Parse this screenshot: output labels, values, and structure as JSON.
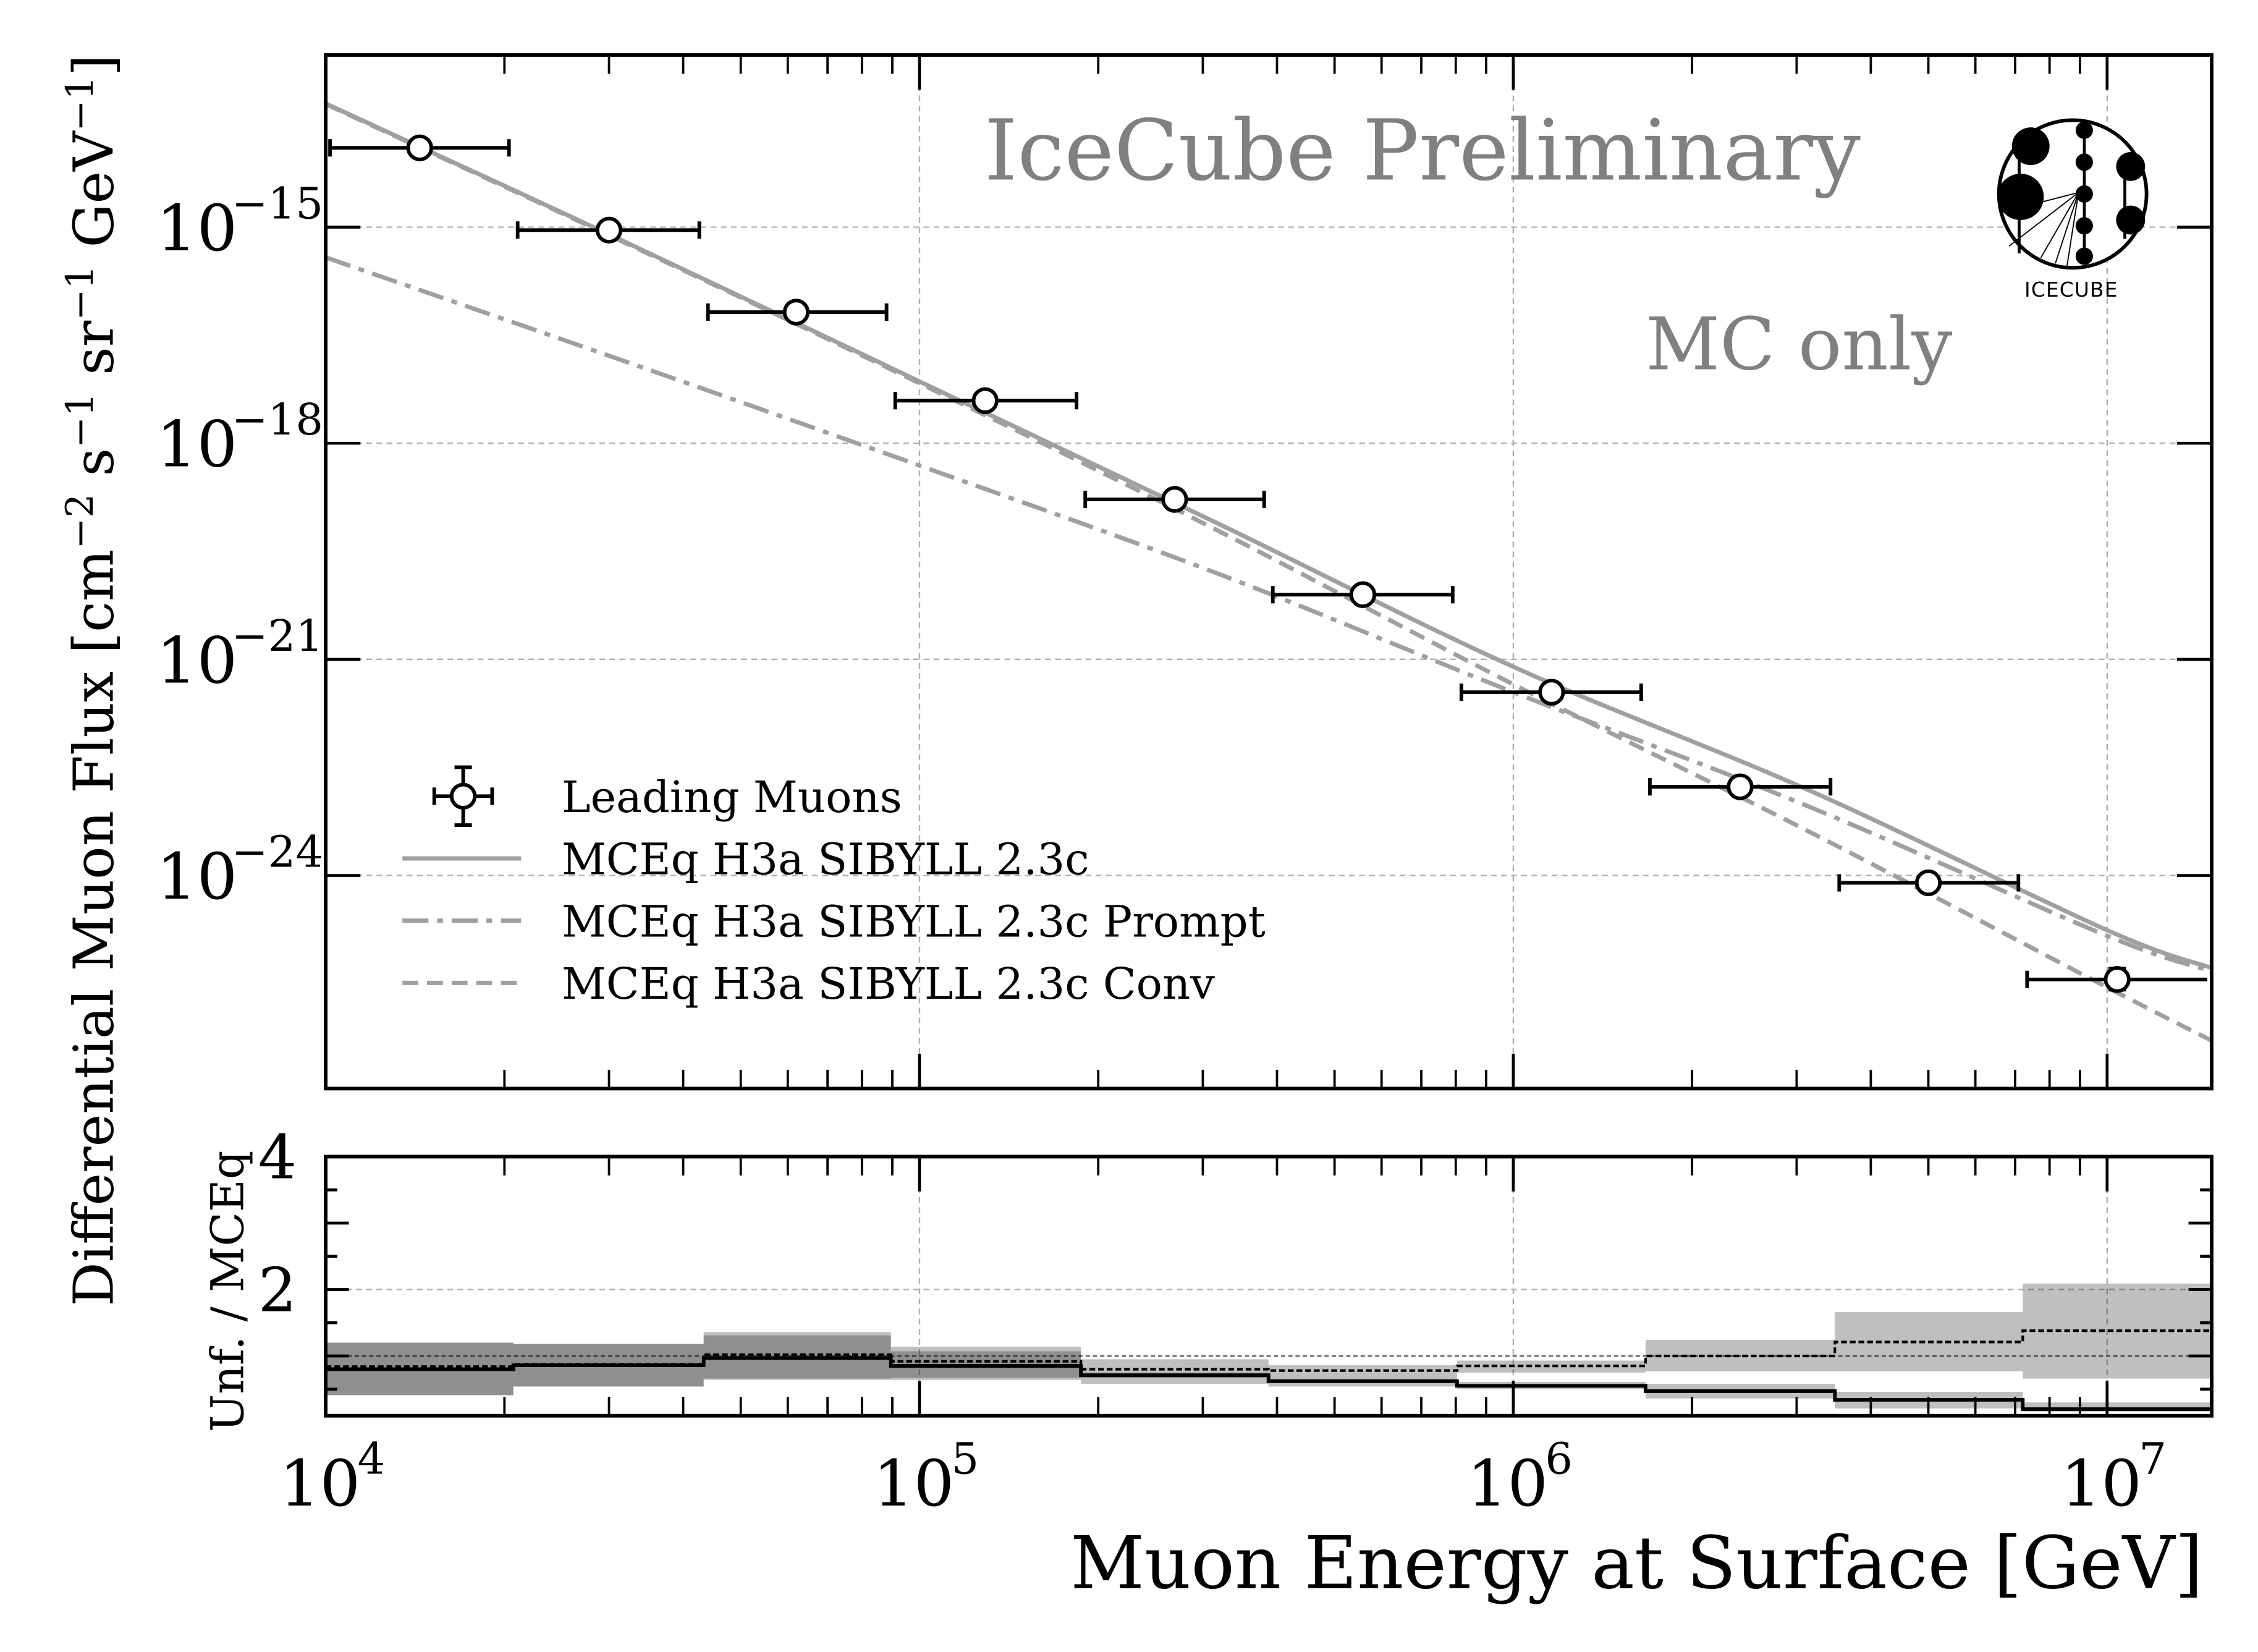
{
  "chart_data": [
    {
      "type": "scatter",
      "annotations": [
        "IceCube Preliminary",
        "MC only"
      ],
      "logo_text": "IceCube",
      "xlabel": "",
      "ylabel": "Differential Muon Flux [cm^-2 s^-1 sr^-1 GeV^-1]",
      "ylabel_parts": {
        "pre": "Differential Muon Flux [cm",
        "e1": "−2",
        "s": " s",
        "e2": "−1",
        "sr": " sr",
        "e3": "−1",
        "gev": " GeV",
        "e4": "−1",
        "post": "]"
      },
      "xscale": "log",
      "yscale": "log",
      "xlim": [
        10000.0,
        15000000.0
      ],
      "ylim": [
        1.1e-27,
        2.45e-13
      ],
      "grid": true,
      "legend_position": "lower-left",
      "yticks": [
        {
          "value": 1e-15,
          "base": "10",
          "exp": "−15"
        },
        {
          "value": 1e-18,
          "base": "10",
          "exp": "−18"
        },
        {
          "value": 1e-21,
          "base": "10",
          "exp": "−21"
        },
        {
          "value": 1e-24,
          "base": "10",
          "exp": "−24"
        }
      ],
      "points": {
        "name": "Leading Muons",
        "x": [
          14400.0,
          30000.0,
          62000.0,
          129000.0,
          269000.0,
          558000.0,
          1160000.0,
          2410000.0,
          5000000.0,
          10400000.0
        ],
        "y": [
          1.26e-14,
          9.1e-16,
          6.6e-17,
          3.9e-18,
          1.66e-19,
          7.9e-21,
          3.5e-22,
          1.7e-23,
          7.9e-25,
          3.6e-26
        ],
        "y_low": [
          1.12e-14,
          8.1e-16,
          5.9e-17,
          3.5e-18,
          1.48e-19,
          7e-21,
          3.1e-22,
          1.5e-23,
          7e-25,
          2.6e-26
        ],
        "y_high": [
          1.41e-14,
          1.02e-15,
          7.4e-17,
          4.4e-18,
          1.86e-19,
          8.8e-21,
          3.9e-22,
          1.9e-23,
          8.9e-25,
          5.1e-26
        ],
        "bin_edges": [
          10000.0,
          20700.0,
          43300.0,
          89500.0,
          187000.0,
          387000.0,
          804000.0,
          1670000.0,
          3480000.0,
          7210000.0,
          15000000.0
        ]
      },
      "series": [
        {
          "name": "MCEq H3a SIBYLL 2.3c",
          "style": "solid",
          "color": "#a0a0a0",
          "x": [
            10000.0,
            31600.0,
            100000.0,
            316000.0,
            1000000.0,
            3160000.0,
            10000000.0,
            15000000.0
          ],
          "y": [
            5.2e-14,
            6.5e-16,
            7.2e-18,
            7.9e-20,
            7.9e-22,
            1.5e-23,
            1.74e-25,
            5.2e-26
          ]
        },
        {
          "name": "MCEq H3a SIBYLL 2.3c Prompt",
          "style": "dashdot",
          "color": "#a0a0a0",
          "x": [
            10000.0,
            31600.0,
            100000.0,
            316000.0,
            1000000.0,
            3160000.0,
            10000000.0,
            15000000.0
          ],
          "y": [
            3.8e-16,
            1.41e-17,
            4.9e-19,
            1.58e-20,
            3.5e-22,
            8.9e-24,
            1.45e-25,
            4.7e-26
          ]
        },
        {
          "name": "MCEq H3a SIBYLL 2.3c Conv",
          "style": "dashed",
          "color": "#a0a0a0",
          "x": [
            10000.0,
            31600.0,
            100000.0,
            316000.0,
            1000000.0,
            3160000.0,
            10000000.0,
            15000000.0
          ],
          "y": [
            5.1e-14,
            6.3e-16,
            6.8e-18,
            6.3e-20,
            4.5e-22,
            4e-24,
            2.8e-26,
            5.1e-27
          ]
        }
      ]
    },
    {
      "type": "step",
      "xlabel": "Muon Energy at Surface [GeV]",
      "ylabel": "Unf. / MCEq",
      "xscale": "log",
      "xlim": [
        10000.0,
        15000000.0
      ],
      "ylim": [
        0.1,
        4.0
      ],
      "grid": true,
      "reference_line": 1.0,
      "xticks": [
        {
          "value": 10000.0,
          "base": "10",
          "exp": "4"
        },
        {
          "value": 100000.0,
          "base": "10",
          "exp": "5"
        },
        {
          "value": 1000000.0,
          "base": "10",
          "exp": "6"
        },
        {
          "value": 10000000.0,
          "base": "10",
          "exp": "7"
        }
      ],
      "yticks": [
        {
          "value": 2,
          "label": "2"
        },
        {
          "value": 4,
          "label": "4"
        }
      ],
      "bin_edges": [
        10000.0,
        20700.0,
        43300.0,
        89500.0,
        187000.0,
        387000.0,
        804000.0,
        1670000.0,
        3480000.0,
        7210000.0,
        15000000.0
      ],
      "series": [
        {
          "style": "solid",
          "color": "#000000",
          "values": [
            0.8,
            0.86,
            0.97,
            0.85,
            0.71,
            0.62,
            0.55,
            0.47,
            0.34,
            0.2
          ],
          "band_low": [
            0.41,
            0.54,
            0.64,
            0.64,
            0.67,
            0.59,
            0.5,
            0.36,
            0.21,
            0.16
          ],
          "band_high": [
            1.2,
            1.18,
            1.31,
            1.07,
            0.75,
            0.65,
            0.61,
            0.58,
            0.46,
            0.3
          ]
        },
        {
          "style": "dashed",
          "color": "#000000",
          "values": [
            0.84,
            0.875,
            1.02,
            0.92,
            0.8,
            0.78,
            0.85,
            1.0,
            1.21,
            1.38
          ],
          "band_low": [
            0.41,
            0.54,
            0.66,
            0.67,
            0.58,
            0.54,
            0.75,
            0.77,
            0.77,
            0.66
          ],
          "band_high": [
            1.2,
            1.18,
            1.36,
            1.14,
            0.95,
            0.86,
            0.93,
            1.24,
            1.66,
            2.09
          ]
        }
      ]
    }
  ]
}
